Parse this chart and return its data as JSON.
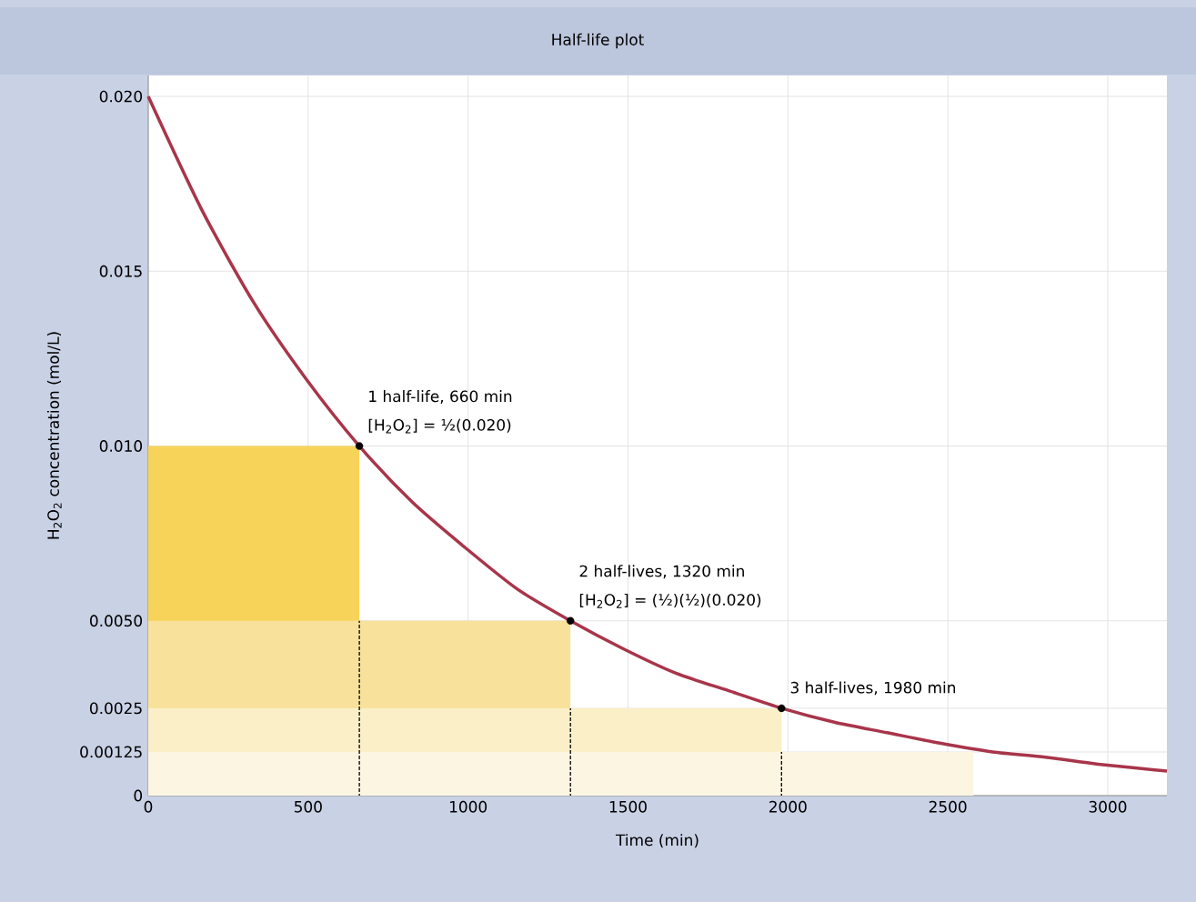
{
  "chart_data": {
    "type": "line",
    "title": "Half-life plot",
    "xlabel": "Time (min)",
    "ylabel": "H$_{2}$O$_{2}$ concentration (mol/L)",
    "xlim": [
      0,
      3185
    ],
    "xticks": [
      0,
      500,
      1000,
      1500,
      2000,
      2500,
      3000
    ],
    "ylim": [
      0,
      0.0206
    ],
    "yticks": [
      0,
      0.00125,
      0.0025,
      {
        "value": 0.005,
        "label": "0.0050"
      },
      {
        "value": 0.01,
        "label": "0.010"
      },
      0.015,
      {
        "value": 0.02,
        "label": "0.020"
      }
    ],
    "grid": true,
    "series": [
      {
        "type": "area",
        "color": "#f7d35a",
        "x": [
          0,
          660
        ],
        "values": [
          0.01,
          0.01
        ]
      },
      {
        "type": "area",
        "color": "#f8e29b",
        "x": [
          0,
          1320
        ],
        "values": [
          0.005,
          0.005
        ]
      },
      {
        "type": "area",
        "color": "#fbefc8",
        "x": [
          0,
          1980
        ],
        "values": [
          0.0025,
          0.0025
        ]
      },
      {
        "type": "area",
        "color": "#fcf5e2",
        "x": [
          0,
          2580
        ],
        "values": [
          0.00125,
          0.00125
        ]
      },
      {
        "type": "line",
        "color": "#000000",
        "line_style": "dashed",
        "marker": "none",
        "x": [
          660,
          660
        ],
        "values": [
          0,
          0.005
        ]
      },
      {
        "type": "line",
        "color": "#000000",
        "line_style": "dashed",
        "marker": "none",
        "x": [
          1320,
          1320
        ],
        "values": [
          0,
          0.0025
        ]
      },
      {
        "type": "line",
        "color": "#000000",
        "line_style": "dashed",
        "marker": "none",
        "x": [
          1980,
          1980
        ],
        "values": [
          0,
          0.00125
        ]
      },
      {
        "color": "#a8354a",
        "line_style": "solid",
        "marker": "none",
        "x": [
          0,
          165,
          330,
          495,
          660,
          825,
          990,
          1155,
          1320,
          1485,
          1650,
          1815,
          1980,
          2145,
          2310,
          2475,
          2640,
          2805,
          2970,
          3185
        ],
        "values": [
          0.02,
          0.0168,
          0.0141,
          0.0119,
          0.01,
          0.0084,
          0.0071,
          0.0059,
          0.005,
          0.0042,
          0.0035,
          0.003,
          0.0025,
          0.0021,
          0.0018,
          0.0015,
          0.00125,
          0.0011,
          0.0009,
          0.0007
        ]
      },
      {
        "type": "scatter",
        "color": "#000000",
        "marker": "circle",
        "x": [
          660,
          1320,
          1980
        ],
        "values": [
          0.01,
          0.005,
          0.0025
        ]
      }
    ],
    "annotations": [
      {
        "text": "1 half-life, 660 min",
        "x": 660,
        "y": 0.01
      },
      {
        "text": "[H$_{2}$O$_{2}$] = ½(0.020)",
        "x": 660,
        "y": 0.01
      },
      {
        "text": "2 half-lives, 1320 min",
        "x": 1320,
        "y": 0.005
      },
      {
        "text": "[H$_{2}$O$_{2}$] = (½)(½)(0.020)",
        "x": 1320,
        "y": 0.005
      },
      {
        "text": "3 half-lives, 1980 min",
        "x": 1980,
        "y": 0.0025
      }
    ]
  }
}
